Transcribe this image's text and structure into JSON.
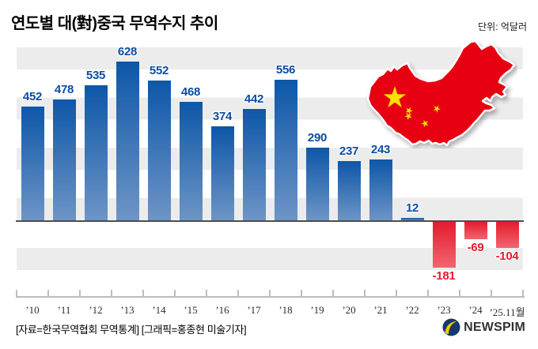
{
  "header": {
    "title": "연도별 대(對)중국 무역수지 추이",
    "unit": "단위: 억달러"
  },
  "chart_data": {
    "type": "bar",
    "title": "연도별 대(對)중국 무역수지 추이",
    "unit": "억달러",
    "categories": [
      "’10",
      "’11",
      "’12",
      "’13",
      "’14",
      "’15",
      "’16",
      "’17",
      "’18",
      "’19",
      "’20",
      "’21",
      "’22",
      "’23",
      "’24",
      "’25.11월"
    ],
    "values": [
      452,
      478,
      535,
      628,
      552,
      468,
      374,
      442,
      556,
      290,
      237,
      243,
      12,
      -181,
      -69,
      -104
    ],
    "baseline": 0,
    "ylim": [
      -220,
      660
    ],
    "grid": "striped-background",
    "legend": "none"
  },
  "map": {
    "name": "china-map-with-flag"
  },
  "footer": {
    "source": "[자료=한국무역협회 무역통계] [그래픽=홍종현 미술기자]",
    "brand": "NEWSPIM"
  },
  "colors": {
    "bar_positive_top": "#0d57a8",
    "bar_positive_bottom": "#6e95c6",
    "bar_negative_top": "#e31c2d",
    "bar_negative_bottom": "#f16570",
    "value_label_positive": "#0b4da2",
    "value_label_negative": "#e8192c",
    "stripe": "#ececec",
    "zero_line": "#4d4d4d",
    "axis": "#bdbdbd",
    "map_red": "#e60012",
    "star_yellow": "#ffde00",
    "brand_navy": "#16386b",
    "brand_yellow": "#f7c600",
    "brand_lightblue": "#41b0e4"
  }
}
